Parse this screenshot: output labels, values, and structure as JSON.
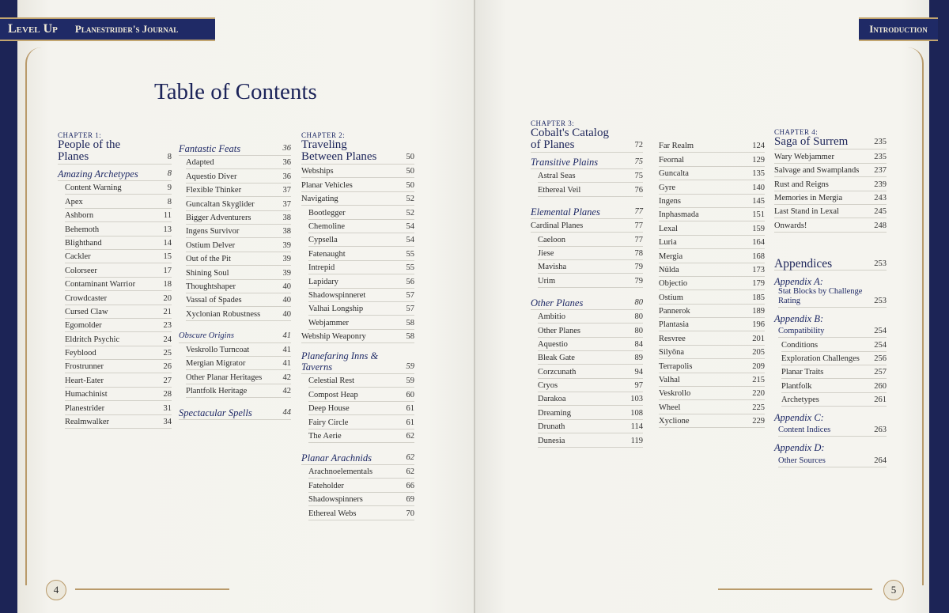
{
  "header": {
    "brand": "Level Up",
    "book": "Planestrider's Journal",
    "section": "Introduction"
  },
  "title": "Table of Contents",
  "page_numbers": {
    "left": "4",
    "right": "5"
  },
  "colors": {
    "navy": "#1f2a66",
    "gold": "#b99a6a",
    "paper": "#f3f2ed"
  },
  "columns": [
    [
      {
        "k": "chlabel",
        "t": "CHAPTER 1:"
      },
      {
        "k": "chtitle",
        "t": "People of the Planes",
        "p": "8"
      },
      {
        "k": "sec",
        "t": "Amazing Archetypes",
        "p": "8"
      },
      {
        "k": "item",
        "t": "Content Warning",
        "p": "9"
      },
      {
        "k": "item",
        "t": "Apex",
        "p": "8"
      },
      {
        "k": "item",
        "t": "Ashborn",
        "p": "11"
      },
      {
        "k": "item",
        "t": "Behemoth",
        "p": "13"
      },
      {
        "k": "item",
        "t": "Blighthand",
        "p": "14"
      },
      {
        "k": "item",
        "t": "Cackler",
        "p": "15"
      },
      {
        "k": "item",
        "t": "Colorseer",
        "p": "17"
      },
      {
        "k": "item",
        "t": "Contaminant Warrior",
        "p": "18"
      },
      {
        "k": "item",
        "t": "Crowdcaster",
        "p": "20"
      },
      {
        "k": "item",
        "t": "Cursed Claw",
        "p": "21"
      },
      {
        "k": "item",
        "t": "Egomolder",
        "p": "23"
      },
      {
        "k": "item",
        "t": "Eldritch Psychic",
        "p": "24"
      },
      {
        "k": "item",
        "t": "Feyblood",
        "p": "25"
      },
      {
        "k": "item",
        "t": "Frostrunner",
        "p": "26"
      },
      {
        "k": "item",
        "t": "Heart-Eater",
        "p": "27"
      },
      {
        "k": "item",
        "t": "Humachinist",
        "p": "28"
      },
      {
        "k": "item",
        "t": "Planestrider",
        "p": "31"
      },
      {
        "k": "item",
        "t": "Realmwalker",
        "p": "34"
      }
    ],
    [
      {
        "k": "sec",
        "t": "Fantastic Feats",
        "p": "36"
      },
      {
        "k": "item",
        "t": "Adapted",
        "p": "36"
      },
      {
        "k": "item",
        "t": "Aquestio Diver",
        "p": "36"
      },
      {
        "k": "item",
        "t": "Flexible Thinker",
        "p": "37"
      },
      {
        "k": "item",
        "t": "Guncaltan Skyglider",
        "p": "37"
      },
      {
        "k": "item",
        "t": "Bigger Adventurers",
        "p": "38"
      },
      {
        "k": "item",
        "t": "Ingens Survivor",
        "p": "38"
      },
      {
        "k": "item",
        "t": "Ostium Delver",
        "p": "39"
      },
      {
        "k": "item",
        "t": "Out of the Pit",
        "p": "39"
      },
      {
        "k": "item",
        "t": "Shining Soul",
        "p": "39"
      },
      {
        "k": "item",
        "t": "Thoughtshaper",
        "p": "40"
      },
      {
        "k": "item",
        "t": "Vassal of Spades",
        "p": "40"
      },
      {
        "k": "item",
        "t": "Xyclonian Robustness",
        "p": "40"
      },
      {
        "k": "sec gap small",
        "t": "Obscure Origins",
        "p": "41"
      },
      {
        "k": "item",
        "t": "Veskrollo Turncoat",
        "p": "41"
      },
      {
        "k": "item",
        "t": "Mergian Migrator",
        "p": "41"
      },
      {
        "k": "item",
        "t": "Other Planar Heritages",
        "p": "42"
      },
      {
        "k": "item",
        "t": "Plantfolk Heritage",
        "p": "42"
      },
      {
        "k": "sec gap",
        "t": "Spectacular Spells",
        "p": "44"
      }
    ],
    [
      {
        "k": "chlabel",
        "t": "CHAPTER 2:"
      },
      {
        "k": "chtitle",
        "t": "Traveling Between Planes",
        "p": "50"
      },
      {
        "k": "top",
        "t": "Webships",
        "p": "50"
      },
      {
        "k": "top",
        "t": "Planar Vehicles",
        "p": "50"
      },
      {
        "k": "top",
        "t": "Navigating",
        "p": "52"
      },
      {
        "k": "item",
        "t": "Bootlegger",
        "p": "52"
      },
      {
        "k": "item",
        "t": "Chemoline",
        "p": "54"
      },
      {
        "k": "item",
        "t": "Cypsella",
        "p": "54"
      },
      {
        "k": "item",
        "t": "Fatenaught",
        "p": "55"
      },
      {
        "k": "item",
        "t": "Intrepid",
        "p": "55"
      },
      {
        "k": "item",
        "t": "Lapidary",
        "p": "56"
      },
      {
        "k": "item",
        "t": "Shadowspinneret",
        "p": "57"
      },
      {
        "k": "item",
        "t": "Valhai Longship",
        "p": "57"
      },
      {
        "k": "item",
        "t": "Webjammer",
        "p": "58"
      },
      {
        "k": "top",
        "t": "Webship Weaponry",
        "p": "58"
      },
      {
        "k": "sec gap",
        "t": "Planefaring Inns & Taverns",
        "p": "59"
      },
      {
        "k": "item",
        "t": "Celestial Rest",
        "p": "59"
      },
      {
        "k": "item",
        "t": "Compost Heap",
        "p": "60"
      },
      {
        "k": "item",
        "t": "Deep House",
        "p": "61"
      },
      {
        "k": "item",
        "t": "Fairy Circle",
        "p": "61"
      },
      {
        "k": "item",
        "t": "The Aerie",
        "p": "62"
      },
      {
        "k": "sec gap",
        "t": "Planar Arachnids",
        "p": "62"
      },
      {
        "k": "item",
        "t": "Arachnoelementals",
        "p": "62"
      },
      {
        "k": "item",
        "t": "Fateholder",
        "p": "66"
      },
      {
        "k": "item",
        "t": "Shadowspinners",
        "p": "69"
      },
      {
        "k": "item",
        "t": "Ethereal Webs",
        "p": "70"
      }
    ],
    [
      {
        "k": "chlabel",
        "t": "CHAPTER 3:"
      },
      {
        "k": "chtitle",
        "t": "Cobalt's Catalog of Planes",
        "p": "72"
      },
      {
        "k": "sec",
        "t": "Transitive Plains",
        "p": "75"
      },
      {
        "k": "item",
        "t": "Astral Seas",
        "p": "75"
      },
      {
        "k": "item",
        "t": "Ethereal Veil",
        "p": "76"
      },
      {
        "k": "sec gap",
        "t": "Elemental Planes",
        "p": "77"
      },
      {
        "k": "top",
        "t": "Cardinal Planes",
        "p": "77"
      },
      {
        "k": "item",
        "t": "Caeloon",
        "p": "77"
      },
      {
        "k": "item",
        "t": "Jiese",
        "p": "78"
      },
      {
        "k": "item",
        "t": "Mavisha",
        "p": "79"
      },
      {
        "k": "item",
        "t": "Urim",
        "p": "79"
      },
      {
        "k": "sec gap",
        "t": "Other Planes",
        "p": "80"
      },
      {
        "k": "item",
        "t": "Ambitio",
        "p": "80"
      },
      {
        "k": "item",
        "t": "Other Planes",
        "p": "80"
      },
      {
        "k": "item",
        "t": "Aquestio",
        "p": "84"
      },
      {
        "k": "item",
        "t": "Bleak Gate",
        "p": "89"
      },
      {
        "k": "item",
        "t": "Corzcunath",
        "p": "94"
      },
      {
        "k": "item",
        "t": "Cryos",
        "p": "97"
      },
      {
        "k": "item",
        "t": "Darakoa",
        "p": "103"
      },
      {
        "k": "item",
        "t": "Dreaming",
        "p": "108"
      },
      {
        "k": "item",
        "t": "Drunath",
        "p": "114"
      },
      {
        "k": "item",
        "t": "Dunesia",
        "p": "119"
      }
    ],
    [
      {
        "k": "top",
        "t": "Far Realm",
        "p": "124"
      },
      {
        "k": "top",
        "t": "Feornal",
        "p": "129"
      },
      {
        "k": "top",
        "t": "Guncalta",
        "p": "135"
      },
      {
        "k": "top",
        "t": "Gyre",
        "p": "140"
      },
      {
        "k": "top",
        "t": "Ingens",
        "p": "145"
      },
      {
        "k": "top",
        "t": "Inphasmada",
        "p": "151"
      },
      {
        "k": "top",
        "t": "Lexal",
        "p": "159"
      },
      {
        "k": "top",
        "t": "Luria",
        "p": "164"
      },
      {
        "k": "top",
        "t": "Mergia",
        "p": "168"
      },
      {
        "k": "top",
        "t": "Nülda",
        "p": "173"
      },
      {
        "k": "top",
        "t": "Objectio",
        "p": "179"
      },
      {
        "k": "top",
        "t": "Ostium",
        "p": "185"
      },
      {
        "k": "top",
        "t": "Pannerok",
        "p": "189"
      },
      {
        "k": "top",
        "t": "Plantasia",
        "p": "196"
      },
      {
        "k": "top",
        "t": "Resvree",
        "p": "201"
      },
      {
        "k": "top",
        "t": "Silyōna",
        "p": "205"
      },
      {
        "k": "top",
        "t": "Terrapolis",
        "p": "209"
      },
      {
        "k": "top",
        "t": "Valhal",
        "p": "215"
      },
      {
        "k": "top",
        "t": "Veskrollo",
        "p": "220"
      },
      {
        "k": "top",
        "t": "Wheel",
        "p": "225"
      },
      {
        "k": "top",
        "t": "Xyclione",
        "p": "229"
      }
    ],
    [
      {
        "k": "chlabel",
        "t": "CHAPTER 4:"
      },
      {
        "k": "chtitle",
        "t": "Saga of Surrem",
        "p": "235"
      },
      {
        "k": "top",
        "t": "Wary Webjammer",
        "p": "235"
      },
      {
        "k": "top",
        "t": "Salvage and Swamplands",
        "p": "237"
      },
      {
        "k": "top",
        "t": "Rust and Reigns",
        "p": "239"
      },
      {
        "k": "top",
        "t": "Memories in Mergia",
        "p": "243"
      },
      {
        "k": "top",
        "t": "Last Stand in Lexal",
        "p": "245"
      },
      {
        "k": "top",
        "t": "Onwards!",
        "p": "248"
      },
      {
        "k": "big",
        "t": "Appendices",
        "p": "253"
      },
      {
        "k": "apx",
        "t": "Appendix A:"
      },
      {
        "k": "apxitem",
        "t": "Stat Blocks by Challenge Rating",
        "p": "253"
      },
      {
        "k": "apx",
        "t": "Appendix B:"
      },
      {
        "k": "apxitem",
        "t": "Compatibility",
        "p": "254"
      },
      {
        "k": "deep",
        "t": "Conditions",
        "p": "254"
      },
      {
        "k": "deep",
        "t": "Exploration Challenges",
        "p": "256"
      },
      {
        "k": "deep",
        "t": "Planar Traits",
        "p": "257"
      },
      {
        "k": "deep",
        "t": "Plantfolk",
        "p": "260"
      },
      {
        "k": "deep",
        "t": "Archetypes",
        "p": "261"
      },
      {
        "k": "apx",
        "t": "Appendix C:"
      },
      {
        "k": "apxitem",
        "t": "Content Indices",
        "p": "263"
      },
      {
        "k": "apx",
        "t": "Appendix D:"
      },
      {
        "k": "apxitem",
        "t": "Other Sources",
        "p": "264"
      }
    ]
  ]
}
